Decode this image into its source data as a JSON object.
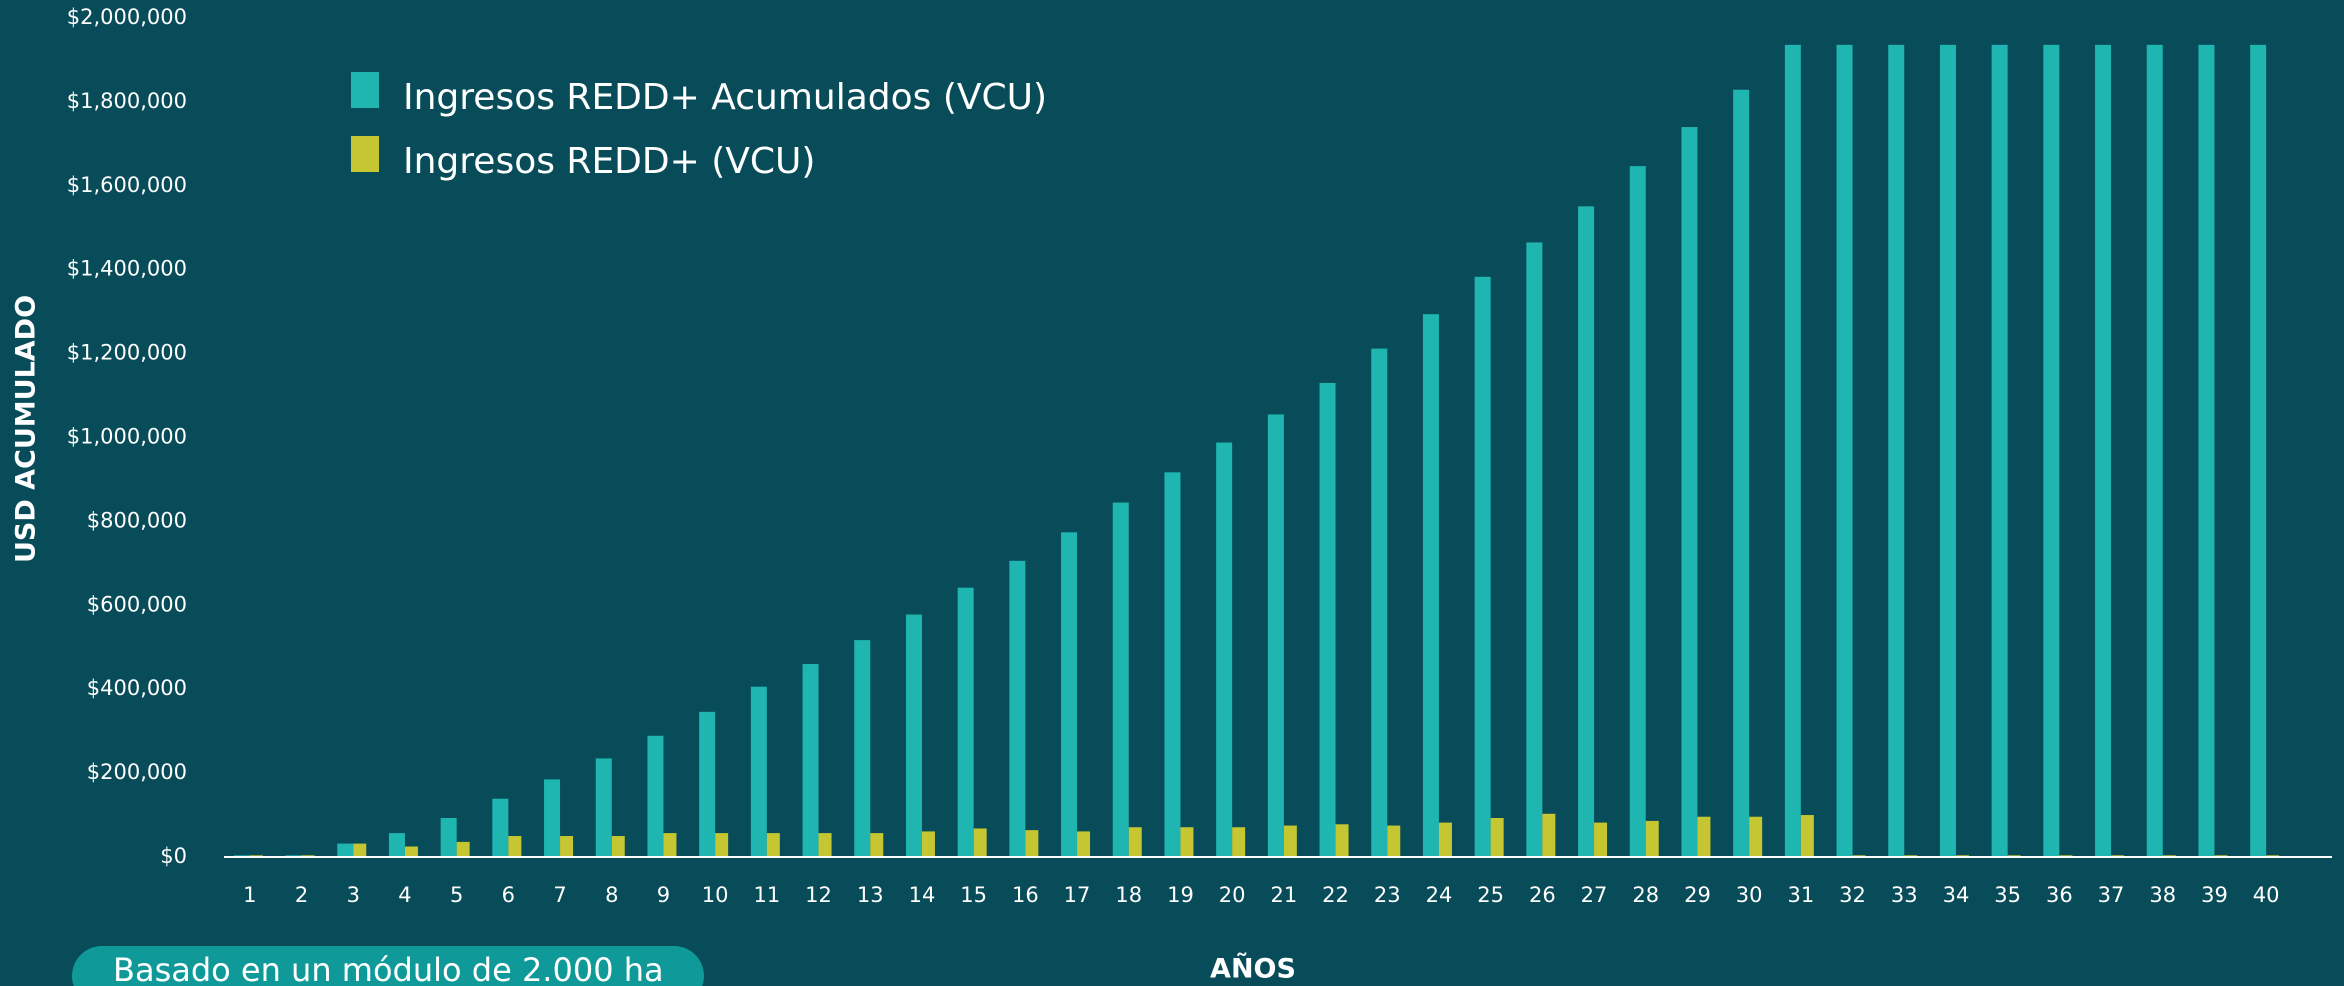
{
  "chart_data": {
    "type": "bar",
    "y_axis_label": "USD ACUMULADO",
    "x_axis_label": "AÑOS",
    "note": "Basado en un módulo de 2.000 ha",
    "categories": [
      "1",
      "2",
      "3",
      "4",
      "5",
      "6",
      "7",
      "8",
      "9",
      "10",
      "11",
      "12",
      "13",
      "14",
      "15",
      "16",
      "17",
      "18",
      "19",
      "20",
      "21",
      "22",
      "23",
      "24",
      "25",
      "26",
      "27",
      "28",
      "29",
      "30",
      "31",
      "32",
      "33",
      "34",
      "35",
      "36",
      "37",
      "38",
      "39",
      "40"
    ],
    "series": [
      {
        "name": "Ingresos REDD+ Acumulados (VCU)",
        "color": "#1fb5b0",
        "values": [
          4000,
          4000,
          32000,
          57000,
          93000,
          139000,
          185000,
          235000,
          289000,
          346000,
          406000,
          460000,
          517000,
          578000,
          642000,
          706000,
          774000,
          845000,
          917000,
          988000,
          1055000,
          1130000,
          1212000,
          1294000,
          1383000,
          1465000,
          1551000,
          1647000,
          1740000,
          1829000,
          1936000,
          1936000,
          1936000,
          1936000,
          1936000,
          1936000,
          1936000,
          1936000,
          1936000,
          1936000
        ]
      },
      {
        "name": "Ingresos REDD+ (VCU)",
        "color": "#c5c632",
        "values": [
          4000,
          4000,
          32000,
          25000,
          36000,
          50000,
          50000,
          50000,
          57000,
          57000,
          57000,
          57000,
          57000,
          61000,
          68000,
          64000,
          61000,
          71000,
          71000,
          71000,
          75000,
          78000,
          75000,
          82000,
          93000,
          103000,
          82000,
          86000,
          96000,
          96000,
          100000,
          4000,
          4000,
          4000,
          4000,
          4000,
          4000,
          4000,
          4000,
          4000
        ]
      }
    ],
    "ylim": [
      0,
      2000000
    ],
    "yticks": [
      {
        "value": 0,
        "label": "$0"
      },
      {
        "value": 200000,
        "label": "$200,000"
      },
      {
        "value": 400000,
        "label": "$400,000"
      },
      {
        "value": 600000,
        "label": "$600,000"
      },
      {
        "value": 800000,
        "label": "$800,000"
      },
      {
        "value": 1000000,
        "label": "$1,000,000"
      },
      {
        "value": 1200000,
        "label": "$1,200,000"
      },
      {
        "value": 1400000,
        "label": "$1,400,000"
      },
      {
        "value": 1600000,
        "label": "$1,600,000"
      },
      {
        "value": 1800000,
        "label": "$1,800,000"
      },
      {
        "value": 2000000,
        "label": "$2,000,000"
      }
    ],
    "grid": false,
    "legend": "top-left"
  }
}
